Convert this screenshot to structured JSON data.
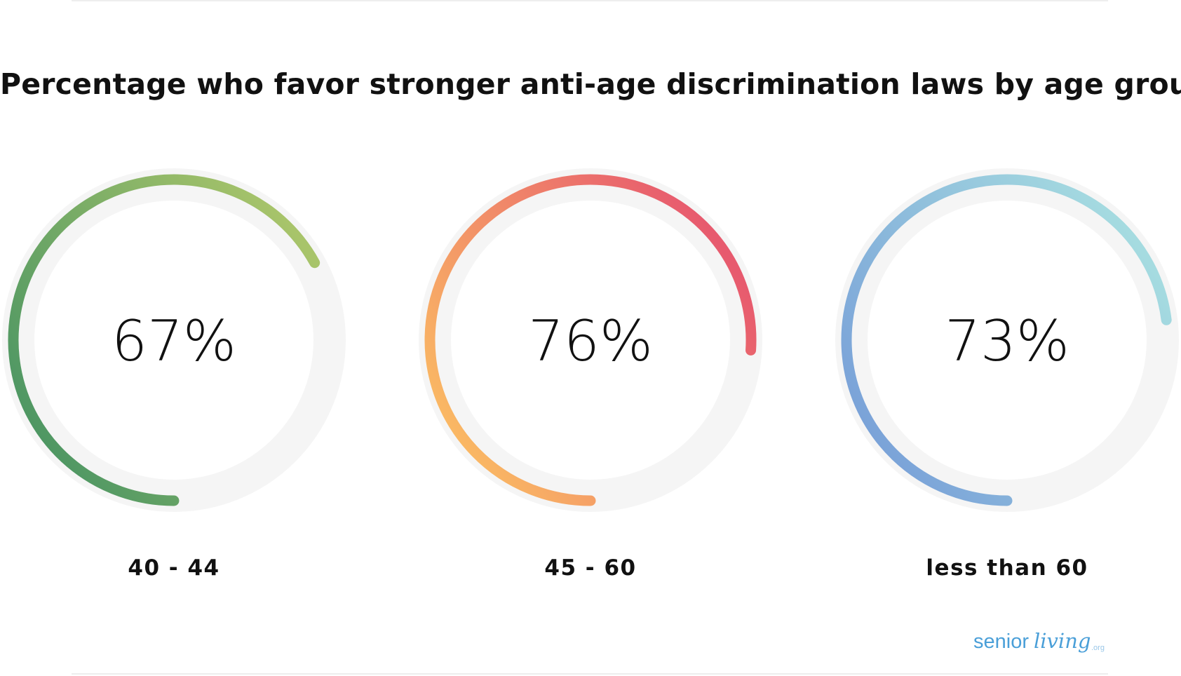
{
  "chart_data": {
    "type": "radial-progress",
    "title": "Percentage who favor stronger anti-age discrimination laws by age group",
    "unit": "%",
    "ylim": [
      0,
      100
    ],
    "categories": [
      "40 - 44",
      "45 - 60",
      "less than 60"
    ],
    "values": [
      67,
      76,
      73
    ],
    "value_labels": [
      "67%",
      "76%",
      "73%"
    ],
    "track_color": "#f5f5f5",
    "gradients": [
      [
        "#3f8f62",
        "#a8c46a"
      ],
      [
        "#fdc862",
        "#e75a6e"
      ],
      [
        "#7399d7",
        "#a5dbe0"
      ]
    ]
  },
  "brand": {
    "logo_text": "seniorliving.org",
    "logo_color": "#4a9fd8"
  }
}
